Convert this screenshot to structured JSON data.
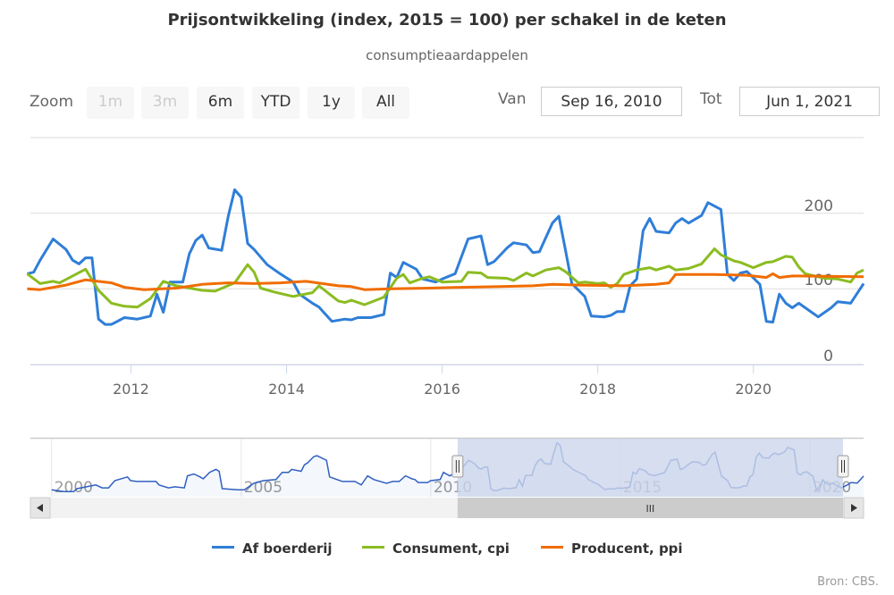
{
  "title": "Prijsontwikkeling (index, 2015 = 100) per schakel in de keten",
  "subtitle": "consumptieaardappelen",
  "range_selector": {
    "zoom_label": "Zoom",
    "buttons": [
      {
        "label": "1m",
        "enabled": false
      },
      {
        "label": "3m",
        "enabled": false
      },
      {
        "label": "6m",
        "enabled": true
      },
      {
        "label": "YTD",
        "enabled": true
      },
      {
        "label": "1y",
        "enabled": true
      },
      {
        "label": "All",
        "enabled": true
      }
    ],
    "from_label": "Van",
    "from_value": "Sep 16, 2010",
    "to_label": "Tot",
    "to_value": "Jun 1, 2021"
  },
  "credits": "Bron: CBS.",
  "colors": {
    "Af boerderij": "#2f7ed8",
    "Consument, cpi": "#8bbc21",
    "Producent, ppi": "#f06c00",
    "navigator_mask": "#ccd6eb"
  },
  "chart_data": {
    "type": "line",
    "title": "Prijsontwikkeling (index, 2015 = 100) per schakel in de keten",
    "subtitle": "consumptieaardappelen",
    "xlabel": "",
    "ylabel": "",
    "x_type": "date",
    "xlim": [
      "2010-09-16",
      "2021-06-01"
    ],
    "ylim": [
      0,
      300
    ],
    "y_ticks": [
      "0",
      "100",
      "200"
    ],
    "x_ticks": [
      "2012",
      "2014",
      "2016",
      "2018",
      "2020"
    ],
    "grid": true,
    "legend_position": "bottom",
    "series": [
      {
        "name": "Af boerderij",
        "color": "#2f7ed8",
        "points": [
          [
            "2010-09",
            120
          ],
          [
            "2010-10",
            122
          ],
          [
            "2010-11",
            138
          ],
          [
            "2011-01",
            166
          ],
          [
            "2011-03",
            152
          ],
          [
            "2011-04",
            138
          ],
          [
            "2011-05",
            133
          ],
          [
            "2011-06",
            141
          ],
          [
            "2011-07",
            141
          ],
          [
            "2011-08",
            60
          ],
          [
            "2011-09",
            53
          ],
          [
            "2011-10",
            53
          ],
          [
            "2011-12",
            62
          ],
          [
            "2012-02",
            60
          ],
          [
            "2012-04",
            64
          ],
          [
            "2012-05",
            93
          ],
          [
            "2012-06",
            69
          ],
          [
            "2012-07",
            109
          ],
          [
            "2012-09",
            109
          ],
          [
            "2012-10",
            146
          ],
          [
            "2012-11",
            164
          ],
          [
            "2012-12",
            171
          ],
          [
            "2013-01",
            154
          ],
          [
            "2013-03",
            151
          ],
          [
            "2013-04",
            196
          ],
          [
            "2013-05",
            231
          ],
          [
            "2013-06",
            221
          ],
          [
            "2013-07",
            160
          ],
          [
            "2013-08",
            152
          ],
          [
            "2013-10",
            132
          ],
          [
            "2013-11",
            126
          ],
          [
            "2013-12",
            120
          ],
          [
            "2014-02",
            109
          ],
          [
            "2014-03",
            93
          ],
          [
            "2014-05",
            81
          ],
          [
            "2014-06",
            76
          ],
          [
            "2014-08",
            57
          ],
          [
            "2014-10",
            60
          ],
          [
            "2014-11",
            59
          ],
          [
            "2014-12",
            62
          ],
          [
            "2015-02",
            62
          ],
          [
            "2015-04",
            66
          ],
          [
            "2015-05",
            121
          ],
          [
            "2015-06",
            115
          ],
          [
            "2015-07",
            135
          ],
          [
            "2015-09",
            126
          ],
          [
            "2015-10",
            113
          ],
          [
            "2015-12",
            109
          ],
          [
            "2016-01",
            113
          ],
          [
            "2016-03",
            120
          ],
          [
            "2016-05",
            166
          ],
          [
            "2016-07",
            170
          ],
          [
            "2016-08",
            132
          ],
          [
            "2016-09",
            136
          ],
          [
            "2016-11",
            154
          ],
          [
            "2016-12",
            161
          ],
          [
            "2017-02",
            158
          ],
          [
            "2017-03",
            148
          ],
          [
            "2017-04",
            149
          ],
          [
            "2017-06",
            187
          ],
          [
            "2017-07",
            196
          ],
          [
            "2017-08",
            152
          ],
          [
            "2017-09",
            107
          ],
          [
            "2017-11",
            90
          ],
          [
            "2017-12",
            64
          ],
          [
            "2018-02",
            63
          ],
          [
            "2018-03",
            65
          ],
          [
            "2018-04",
            70
          ],
          [
            "2018-05",
            70
          ],
          [
            "2018-06",
            104
          ],
          [
            "2018-07",
            113
          ],
          [
            "2018-08",
            177
          ],
          [
            "2018-09",
            193
          ],
          [
            "2018-10",
            176
          ],
          [
            "2018-12",
            174
          ],
          [
            "2019-01",
            187
          ],
          [
            "2019-02",
            193
          ],
          [
            "2019-03",
            187
          ],
          [
            "2019-05",
            197
          ],
          [
            "2019-06",
            214
          ],
          [
            "2019-08",
            205
          ],
          [
            "2019-09",
            119
          ],
          [
            "2019-10",
            111
          ],
          [
            "2019-11",
            121
          ],
          [
            "2019-12",
            123
          ],
          [
            "2020-02",
            106
          ],
          [
            "2020-03",
            57
          ],
          [
            "2020-04",
            56
          ],
          [
            "2020-05",
            93
          ],
          [
            "2020-06",
            81
          ],
          [
            "2020-07",
            75
          ],
          [
            "2020-08",
            81
          ],
          [
            "2020-10",
            69
          ],
          [
            "2020-11",
            63
          ],
          [
            "2021-01",
            75
          ],
          [
            "2021-02",
            83
          ],
          [
            "2021-04",
            81
          ],
          [
            "2021-06",
            107
          ]
        ]
      },
      {
        "name": "Consument, cpi",
        "color": "#8bbc21",
        "points": [
          [
            "2010-09",
            120
          ],
          [
            "2010-11",
            107
          ],
          [
            "2011-01",
            110
          ],
          [
            "2011-02",
            108
          ],
          [
            "2011-06",
            126
          ],
          [
            "2011-08",
            98
          ],
          [
            "2011-10",
            81
          ],
          [
            "2011-12",
            77
          ],
          [
            "2012-02",
            76
          ],
          [
            "2012-04",
            87
          ],
          [
            "2012-06",
            110
          ],
          [
            "2012-08",
            104
          ],
          [
            "2012-12",
            98
          ],
          [
            "2013-02",
            97
          ],
          [
            "2013-05",
            108
          ],
          [
            "2013-07",
            132
          ],
          [
            "2013-08",
            122
          ],
          [
            "2013-09",
            101
          ],
          [
            "2013-11",
            96
          ],
          [
            "2014-02",
            90
          ],
          [
            "2014-05",
            95
          ],
          [
            "2014-06",
            104
          ],
          [
            "2014-09",
            84
          ],
          [
            "2014-10",
            82
          ],
          [
            "2014-11",
            85
          ],
          [
            "2015-01",
            79
          ],
          [
            "2015-04",
            89
          ],
          [
            "2015-06",
            114
          ],
          [
            "2015-07",
            119
          ],
          [
            "2015-08",
            108
          ],
          [
            "2015-10",
            114
          ],
          [
            "2015-11",
            116
          ],
          [
            "2016-01",
            109
          ],
          [
            "2016-04",
            110
          ],
          [
            "2016-05",
            122
          ],
          [
            "2016-07",
            121
          ],
          [
            "2016-08",
            115
          ],
          [
            "2016-11",
            114
          ],
          [
            "2016-12",
            111
          ],
          [
            "2017-02",
            121
          ],
          [
            "2017-03",
            117
          ],
          [
            "2017-05",
            125
          ],
          [
            "2017-07",
            128
          ],
          [
            "2017-08",
            123
          ],
          [
            "2017-10",
            108
          ],
          [
            "2017-11",
            109
          ],
          [
            "2018-01",
            107
          ],
          [
            "2018-02",
            108
          ],
          [
            "2018-03",
            102
          ],
          [
            "2018-04",
            107
          ],
          [
            "2018-05",
            119
          ],
          [
            "2018-07",
            125
          ],
          [
            "2018-09",
            128
          ],
          [
            "2018-10",
            125
          ],
          [
            "2018-12",
            130
          ],
          [
            "2019-01",
            125
          ],
          [
            "2019-03",
            127
          ],
          [
            "2019-05",
            133
          ],
          [
            "2019-07",
            153
          ],
          [
            "2019-08",
            145
          ],
          [
            "2019-10",
            137
          ],
          [
            "2019-11",
            135
          ],
          [
            "2020-01",
            128
          ],
          [
            "2020-03",
            135
          ],
          [
            "2020-04",
            136
          ],
          [
            "2020-06",
            143
          ],
          [
            "2020-07",
            142
          ],
          [
            "2020-08",
            129
          ],
          [
            "2020-09",
            120
          ],
          [
            "2020-12",
            114
          ],
          [
            "2021-02",
            113
          ],
          [
            "2021-04",
            109
          ],
          [
            "2021-05",
            121
          ],
          [
            "2021-06",
            125
          ]
        ]
      },
      {
        "name": "Producent, ppi",
        "color": "#f06c00",
        "points": [
          [
            "2010-09",
            100
          ],
          [
            "2010-11",
            99
          ],
          [
            "2011-03",
            105
          ],
          [
            "2011-06",
            112
          ],
          [
            "2011-10",
            108
          ],
          [
            "2011-12",
            102
          ],
          [
            "2012-03",
            99
          ],
          [
            "2012-08",
            101
          ],
          [
            "2012-12",
            106
          ],
          [
            "2013-04",
            108
          ],
          [
            "2013-08",
            107
          ],
          [
            "2013-12",
            108
          ],
          [
            "2014-04",
            110
          ],
          [
            "2014-09",
            104
          ],
          [
            "2014-11",
            103
          ],
          [
            "2015-01",
            99
          ],
          [
            "2015-05",
            100
          ],
          [
            "2015-11",
            101
          ],
          [
            "2016-04",
            102
          ],
          [
            "2016-10",
            103
          ],
          [
            "2017-03",
            104
          ],
          [
            "2017-06",
            106
          ],
          [
            "2017-10",
            105
          ],
          [
            "2018-05",
            104
          ],
          [
            "2018-10",
            106
          ],
          [
            "2018-12",
            108
          ],
          [
            "2019-01",
            119
          ],
          [
            "2019-07",
            119
          ],
          [
            "2019-12",
            118
          ],
          [
            "2020-03",
            115
          ],
          [
            "2020-04",
            120
          ],
          [
            "2020-05",
            115
          ],
          [
            "2020-07",
            117
          ],
          [
            "2021-06",
            116
          ]
        ]
      }
    ],
    "navigator": {
      "x_ticks": [
        "2000",
        "2005",
        "2010",
        "2015",
        "2020"
      ],
      "series_name": "Af boerderij",
      "points": [
        [
          "2000-01",
          56
        ],
        [
          "2000-05",
          49
        ],
        [
          "2000-08",
          49
        ],
        [
          "2000-09",
          60
        ],
        [
          "2001-03",
          74
        ],
        [
          "2001-05",
          63
        ],
        [
          "2001-07",
          63
        ],
        [
          "2001-09",
          90
        ],
        [
          "2002-01",
          104
        ],
        [
          "2002-02",
          90
        ],
        [
          "2002-04",
          87
        ],
        [
          "2002-10",
          87
        ],
        [
          "2002-11",
          74
        ],
        [
          "2003-02",
          63
        ],
        [
          "2003-04",
          67
        ],
        [
          "2003-07",
          63
        ],
        [
          "2003-08",
          108
        ],
        [
          "2003-10",
          115
        ],
        [
          "2003-12",
          104
        ],
        [
          "2004-01",
          97
        ],
        [
          "2004-03",
          121
        ],
        [
          "2004-05",
          132
        ],
        [
          "2004-06",
          125
        ],
        [
          "2004-07",
          60
        ],
        [
          "2004-12",
          56
        ],
        [
          "2005-02",
          56
        ],
        [
          "2005-05",
          80
        ],
        [
          "2005-08",
          90
        ],
        [
          "2005-12",
          94
        ],
        [
          "2006-02",
          121
        ],
        [
          "2006-04",
          121
        ],
        [
          "2006-05",
          132
        ],
        [
          "2006-08",
          125
        ],
        [
          "2006-09",
          149
        ],
        [
          "2006-10",
          156
        ],
        [
          "2006-12",
          180
        ],
        [
          "2007-01",
          183
        ],
        [
          "2007-04",
          166
        ],
        [
          "2007-05",
          104
        ],
        [
          "2007-09",
          87
        ],
        [
          "2008-01",
          87
        ],
        [
          "2008-03",
          74
        ],
        [
          "2008-05",
          108
        ],
        [
          "2008-07",
          94
        ],
        [
          "2008-11",
          80
        ],
        [
          "2009-01",
          87
        ],
        [
          "2009-03",
          87
        ],
        [
          "2009-05",
          108
        ],
        [
          "2009-07",
          97
        ],
        [
          "2009-08",
          94
        ],
        [
          "2009-09",
          83
        ],
        [
          "2009-12",
          83
        ],
        [
          "2010-01",
          90
        ],
        [
          "2010-04",
          94
        ],
        [
          "2010-05",
          121
        ],
        [
          "2010-07",
          108
        ]
      ],
      "scrollbar_grip": "III",
      "handle_grip": "||"
    }
  }
}
